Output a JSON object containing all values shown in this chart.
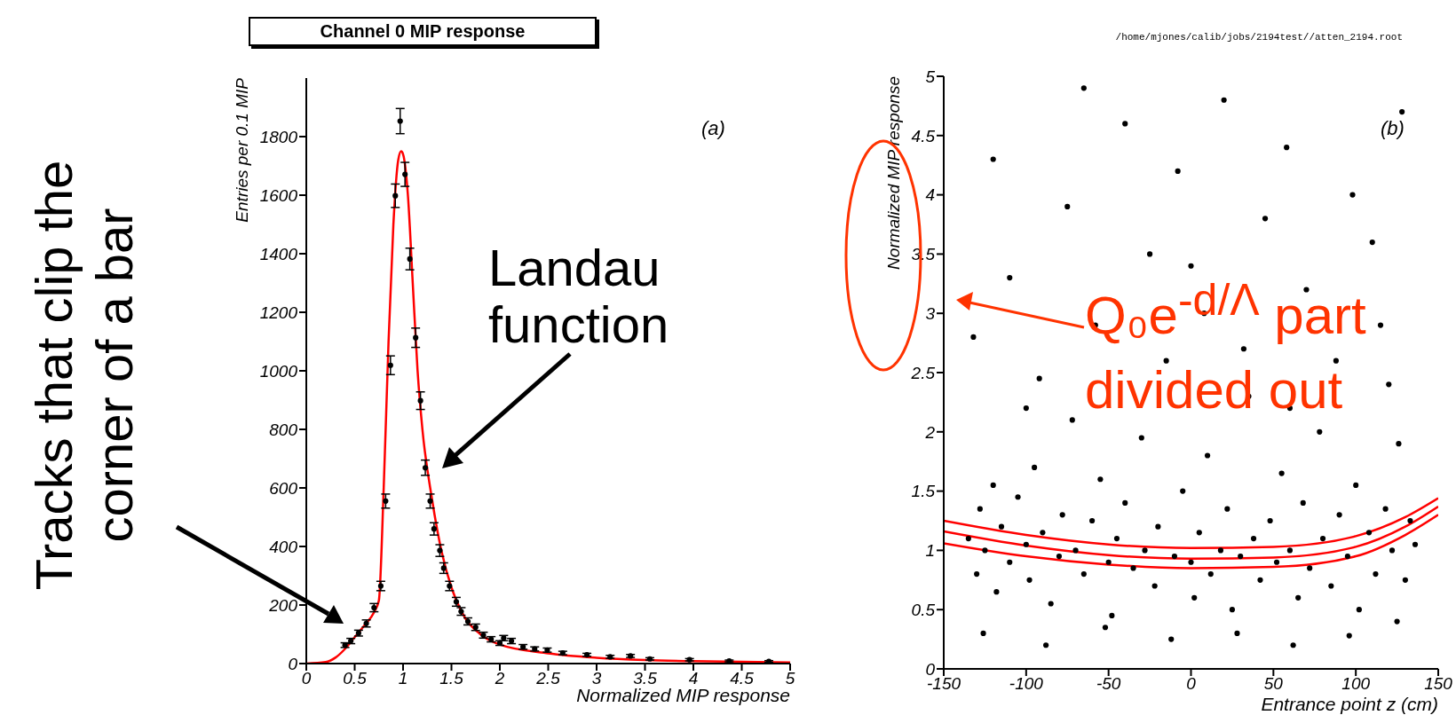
{
  "chart_data": [
    {
      "type": "scatter",
      "title": "Channel 0 MIP response",
      "xlabel": "Normalized MIP response",
      "ylabel": "Entries per 0.1 MIP",
      "annotations": [
        "(a)",
        "Landau function",
        "Tracks that clip the corner of a bar"
      ],
      "xlim": [
        0,
        5
      ],
      "xticks": [
        0,
        0.5,
        1,
        1.5,
        2,
        2.5,
        3,
        3.5,
        4,
        4.5,
        5
      ],
      "ylim": [
        0,
        2000
      ],
      "yticks": [
        0,
        200,
        400,
        600,
        800,
        1000,
        1200,
        1400,
        1600,
        1800
      ],
      "series": [
        {
          "color": "#000000",
          "marker": "circle",
          "x": [
            0.4,
            0.46,
            0.54,
            0.62,
            0.7,
            0.77,
            0.82,
            0.87,
            0.92,
            0.97,
            1.02,
            1.07,
            1.13,
            1.18,
            1.23,
            1.28,
            1.32,
            1.38,
            1.42,
            1.48,
            1.55,
            1.6,
            1.67,
            1.75,
            1.83,
            1.91,
            2.0,
            2.04,
            2.12,
            2.24,
            2.36,
            2.49,
            2.65,
            2.9,
            3.14,
            3.35,
            3.55,
            3.96,
            4.37,
            4.78
          ],
          "values": [
            63,
            77,
            104,
            137,
            191,
            265,
            555,
            1019,
            1598,
            1853,
            1671,
            1382,
            1113,
            898,
            669,
            555,
            460,
            386,
            326,
            265,
            211,
            178,
            144,
            124,
            97,
            83,
            70,
            87,
            77,
            57,
            50,
            46,
            36,
            30,
            23,
            26,
            16,
            13,
            9,
            7
          ],
          "errors": [
            8,
            9,
            10,
            12,
            14,
            16,
            24,
            32,
            40,
            43,
            41,
            37,
            33,
            30,
            26,
            24,
            21,
            20,
            18,
            16,
            15,
            13,
            12,
            11,
            10,
            9,
            8,
            9,
            9,
            8,
            7,
            7,
            6,
            5,
            5,
            5,
            4,
            4,
            3,
            3
          ]
        },
        {
          "type": "line",
          "color": "#ff0000",
          "marker": "none",
          "x": [
            0,
            0.2,
            0.3,
            0.4,
            0.5,
            0.6,
            0.7,
            0.75,
            0.8,
            0.85,
            0.9,
            0.95,
            0.98,
            1.0,
            1.05,
            1.1,
            1.15,
            1.2,
            1.3,
            1.4,
            1.5,
            1.6,
            1.8,
            2.0,
            2.5,
            3.0,
            3.5,
            4.0,
            5.0
          ],
          "values": [
            0,
            5,
            20,
            50,
            90,
            130,
            175,
            215,
            600,
            1100,
            1500,
            1720,
            1750,
            1740,
            1600,
            1300,
            1000,
            800,
            560,
            380,
            260,
            180,
            100,
            65,
            35,
            20,
            12,
            8,
            4
          ]
        }
      ]
    },
    {
      "type": "scatter",
      "xlabel": "Entrance point z (cm)",
      "ylabel": "Normalized MIP response",
      "annotations": [
        "/home/mjones/calib/jobs/2194test//atten_2194.root",
        "(b)",
        "Q₀e$^{-d/Λ}$ part divided out"
      ],
      "xlim": [
        -150,
        150
      ],
      "xticks": [
        -150,
        -100,
        -50,
        0,
        50,
        100,
        150
      ],
      "ylim": [
        0,
        5
      ],
      "yticks": [
        0,
        0.5,
        1,
        1.5,
        2,
        2.5,
        3,
        3.5,
        4,
        4.5,
        5
      ],
      "series": [
        {
          "color": "#000000",
          "marker": "circle",
          "x": [
            -135,
            -130,
            -128,
            -125,
            -120,
            -118,
            -115,
            -110,
            -105,
            -100,
            -98,
            -95,
            -90,
            -85,
            -80,
            -78,
            -72,
            -70,
            -65,
            -60,
            -55,
            -50,
            -48,
            -45,
            -40,
            -35,
            -30,
            -28,
            -22,
            -20,
            -15,
            -10,
            -5,
            0,
            2,
            5,
            10,
            12,
            18,
            22,
            25,
            30,
            35,
            38,
            42,
            48,
            52,
            55,
            60,
            65,
            68,
            72,
            78,
            80,
            85,
            90,
            95,
            100,
            102,
            108,
            112,
            118,
            122,
            126,
            130,
            133,
            136,
            -132,
            -110,
            -92,
            -75,
            -58,
            -40,
            -25,
            -8,
            8,
            20,
            32,
            45,
            58,
            70,
            88,
            98,
            110,
            120,
            128,
            -120,
            -65,
            0,
            60,
            -100,
            115,
            -126,
            -88,
            -52,
            -12,
            28,
            62,
            96,
            125
          ],
          "values": [
            1.1,
            0.8,
            1.35,
            1.0,
            1.55,
            0.65,
            1.2,
            0.9,
            1.45,
            1.05,
            0.75,
            1.7,
            1.15,
            0.55,
            0.95,
            1.3,
            2.1,
            1.0,
            0.8,
            1.25,
            1.6,
            0.9,
            0.45,
            1.1,
            1.4,
            0.85,
            1.95,
            1.0,
            0.7,
            1.2,
            2.6,
            0.95,
            1.5,
            0.9,
            0.6,
            1.15,
            1.8,
            0.8,
            1.0,
            1.35,
            0.5,
            0.95,
            2.3,
            1.1,
            0.75,
            1.25,
            0.9,
            1.65,
            1.0,
            0.6,
            1.4,
            0.85,
            2.0,
            1.1,
            0.7,
            1.3,
            0.95,
            1.55,
            0.5,
            1.15,
            0.8,
            1.35,
            1.0,
            1.9,
            0.75,
            1.25,
            1.05,
            2.8,
            3.3,
            2.45,
            3.9,
            2.9,
            4.6,
            3.5,
            4.2,
            3.0,
            4.8,
            2.7,
            3.8,
            4.4,
            3.2,
            2.6,
            4.0,
            3.6,
            2.4,
            4.7,
            4.3,
            4.9,
            3.4,
            2.2,
            2.2,
            2.9,
            0.3,
            0.2,
            0.35,
            0.25,
            0.3,
            0.2,
            0.28,
            0.4
          ]
        },
        {
          "type": "line",
          "color": "#ff0000",
          "marker": "none",
          "x": [
            -150,
            -100,
            -50,
            0,
            50,
            100,
            130,
            150
          ],
          "values": [
            1.25,
            1.13,
            1.05,
            1.02,
            1.03,
            1.12,
            1.28,
            1.44
          ]
        },
        {
          "type": "line",
          "color": "#ff0000",
          "marker": "none",
          "x": [
            -150,
            -100,
            -50,
            0,
            50,
            100,
            130,
            150
          ],
          "values": [
            1.16,
            1.04,
            0.96,
            0.93,
            0.94,
            1.03,
            1.2,
            1.37
          ]
        },
        {
          "type": "line",
          "color": "#ff0000",
          "marker": "none",
          "x": [
            -150,
            -100,
            -50,
            0,
            50,
            100,
            130,
            150
          ],
          "values": [
            1.06,
            0.95,
            0.88,
            0.85,
            0.86,
            0.95,
            1.13,
            1.3
          ]
        }
      ]
    }
  ]
}
